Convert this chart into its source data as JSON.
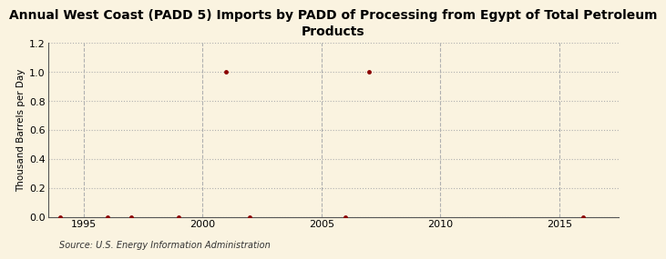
{
  "title": "Annual West Coast (PADD 5) Imports by PADD of Processing from Egypt of Total Petroleum\nProducts",
  "ylabel": "Thousand Barrels per Day",
  "source": "Source: U.S. Energy Information Administration",
  "background_color": "#faf3e0",
  "plot_background_color": "#faf3e0",
  "xlim": [
    1993.5,
    2017.5
  ],
  "ylim": [
    0.0,
    1.2
  ],
  "yticks": [
    0.0,
    0.2,
    0.4,
    0.6,
    0.8,
    1.0,
    1.2
  ],
  "xticks": [
    1995,
    2000,
    2005,
    2010,
    2015
  ],
  "years": [
    1994,
    1996,
    1997,
    1999,
    2001,
    2002,
    2006,
    2007,
    2016
  ],
  "values": [
    0.0,
    0.0,
    0.0,
    0.0,
    1.0,
    0.0,
    0.0,
    1.0,
    0.0
  ],
  "marker_color": "#8b0000",
  "marker_size": 3.5,
  "grid_color": "#b0b0b0",
  "grid_linestyle": ":",
  "grid_linewidth": 0.8,
  "vgrid_color": "#b0b0b0",
  "vgrid_linestyle": "--",
  "vgrid_linewidth": 0.8,
  "title_fontsize": 10,
  "ylabel_fontsize": 7.5,
  "tick_fontsize": 8,
  "source_fontsize": 7
}
